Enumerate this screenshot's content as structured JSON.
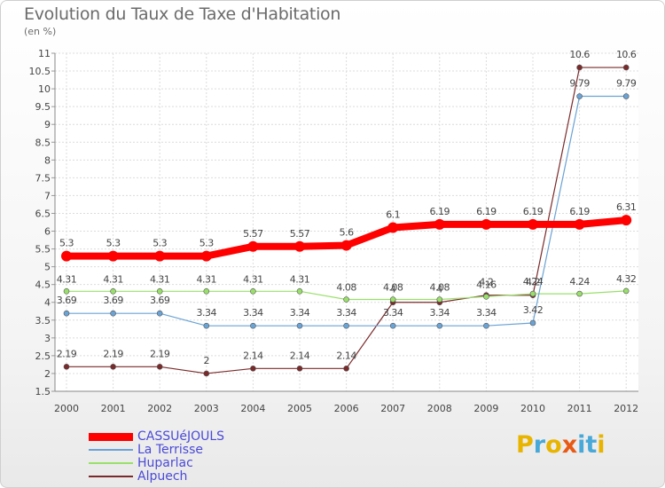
{
  "chart_data": {
    "type": "line",
    "title": "Evolution du Taux de Taxe d'Habitation",
    "subtitle": "(en %)",
    "x": [
      "2000",
      "2001",
      "2002",
      "2003",
      "2004",
      "2005",
      "2006",
      "2007",
      "2008",
      "2009",
      "2010",
      "2011",
      "2012"
    ],
    "ylim": [
      1.5,
      11
    ],
    "yticks": [
      "1.5",
      "2",
      "2.5",
      "3",
      "3.5",
      "4",
      "4.5",
      "5",
      "5.5",
      "6",
      "6.5",
      "7",
      "7.5",
      "8",
      "8.5",
      "9",
      "9.5",
      "10",
      "10.5",
      "11"
    ],
    "grid": true,
    "legend_position": "bottom-left",
    "series": [
      {
        "name": "CASSUéJOULS",
        "color": "#ff0000",
        "values": [
          5.3,
          5.3,
          5.3,
          5.3,
          5.57,
          5.57,
          5.6,
          6.1,
          6.19,
          6.19,
          6.19,
          6.19,
          6.31
        ],
        "labels": [
          "5.3",
          "5.3",
          "5.3",
          "5.3",
          "5.57",
          "5.57",
          "5.6",
          "6.1",
          "6.19",
          "6.19",
          "6.19",
          "6.19",
          "6.31"
        ]
      },
      {
        "name": "La Terrisse",
        "color": "#6aa3d5",
        "values": [
          3.69,
          3.69,
          3.69,
          3.34,
          3.34,
          3.34,
          3.34,
          3.34,
          3.34,
          3.34,
          3.42,
          9.79,
          9.79
        ],
        "labels": [
          "3.69",
          "3.69",
          "3.69",
          "3.34",
          "3.34",
          "3.34",
          "3.34",
          "3.34",
          "3.34",
          "3.34",
          "3.42",
          "9.79",
          "9.79"
        ]
      },
      {
        "name": "Huparlac",
        "color": "#99e06a",
        "values": [
          4.31,
          4.31,
          4.31,
          4.31,
          4.31,
          4.31,
          4.08,
          4.08,
          4.08,
          4.16,
          4.24,
          4.24,
          4.32
        ],
        "labels": [
          "4.31",
          "4.31",
          "4.31",
          "4.31",
          "4.31",
          "4.31",
          "4.08",
          "4.08",
          "4.08",
          "4.16",
          "4.24",
          "4.24",
          "4.32"
        ]
      },
      {
        "name": "Alpuech",
        "color": "#7a2a2a",
        "values": [
          2.19,
          2.19,
          2.19,
          2.0,
          2.14,
          2.14,
          2.14,
          4.0,
          4.0,
          4.2,
          4.2,
          10.6,
          10.6
        ],
        "labels": [
          "2.19",
          "2.19",
          "2.19",
          "2",
          "2.14",
          "2.14",
          "2.14",
          "4",
          "4",
          "4.2",
          "4.2",
          "10.6",
          "10.6"
        ]
      }
    ]
  },
  "logo": {
    "text": "Proxiti",
    "colors": [
      "#e8b400",
      "#48a8d8",
      "#e8b400",
      "#e85a14",
      "#48a8d8",
      "#48a8d8",
      "#e8b400"
    ]
  }
}
